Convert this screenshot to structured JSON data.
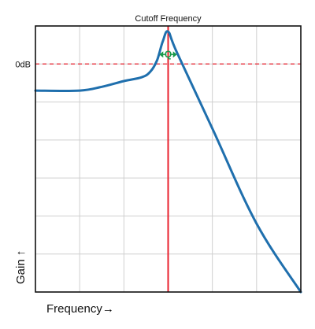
{
  "chart_data": {
    "type": "line",
    "title": "",
    "xlabel": "Frequency",
    "ylabel": "Gain",
    "x_arrow": "→",
    "y_arrow": "↑",
    "xlim": [
      0,
      6
    ],
    "ylim": [
      -6,
      1
    ],
    "grid": true,
    "y_tick_labels": [
      {
        "value": 0,
        "label": "0dB"
      }
    ],
    "reference_lines": [
      {
        "orientation": "horizontal",
        "value": 0,
        "style": "dashed",
        "color": "#e8212e"
      },
      {
        "orientation": "vertical",
        "value": 3,
        "style": "solid",
        "color": "#e8212e",
        "label": "Cutoff Frequency"
      }
    ],
    "annotation": {
      "text": "Q",
      "x": 3,
      "y": 0.25,
      "span": [
        2.8,
        3.2
      ],
      "color": "#1a9a4b"
    },
    "series": [
      {
        "color": "#1f6fad",
        "points": [
          [
            0,
            -0.7
          ],
          [
            1.0,
            -0.7
          ],
          [
            1.5,
            -0.6
          ],
          [
            2.0,
            -0.45
          ],
          [
            2.4,
            -0.35
          ],
          [
            2.6,
            -0.2
          ],
          [
            2.75,
            0.1
          ],
          [
            2.88,
            0.6
          ],
          [
            3.0,
            0.85
          ],
          [
            3.2,
            0.3
          ],
          [
            4.0,
            -1.7
          ],
          [
            5.0,
            -4.2
          ],
          [
            6.0,
            -6.0
          ]
        ]
      }
    ]
  },
  "colors": {
    "curve": "#1f6fad",
    "reference": "#e8212e",
    "q_marker": "#1a9a4b",
    "grid": "#cfcfcf",
    "frame": "#111111"
  }
}
